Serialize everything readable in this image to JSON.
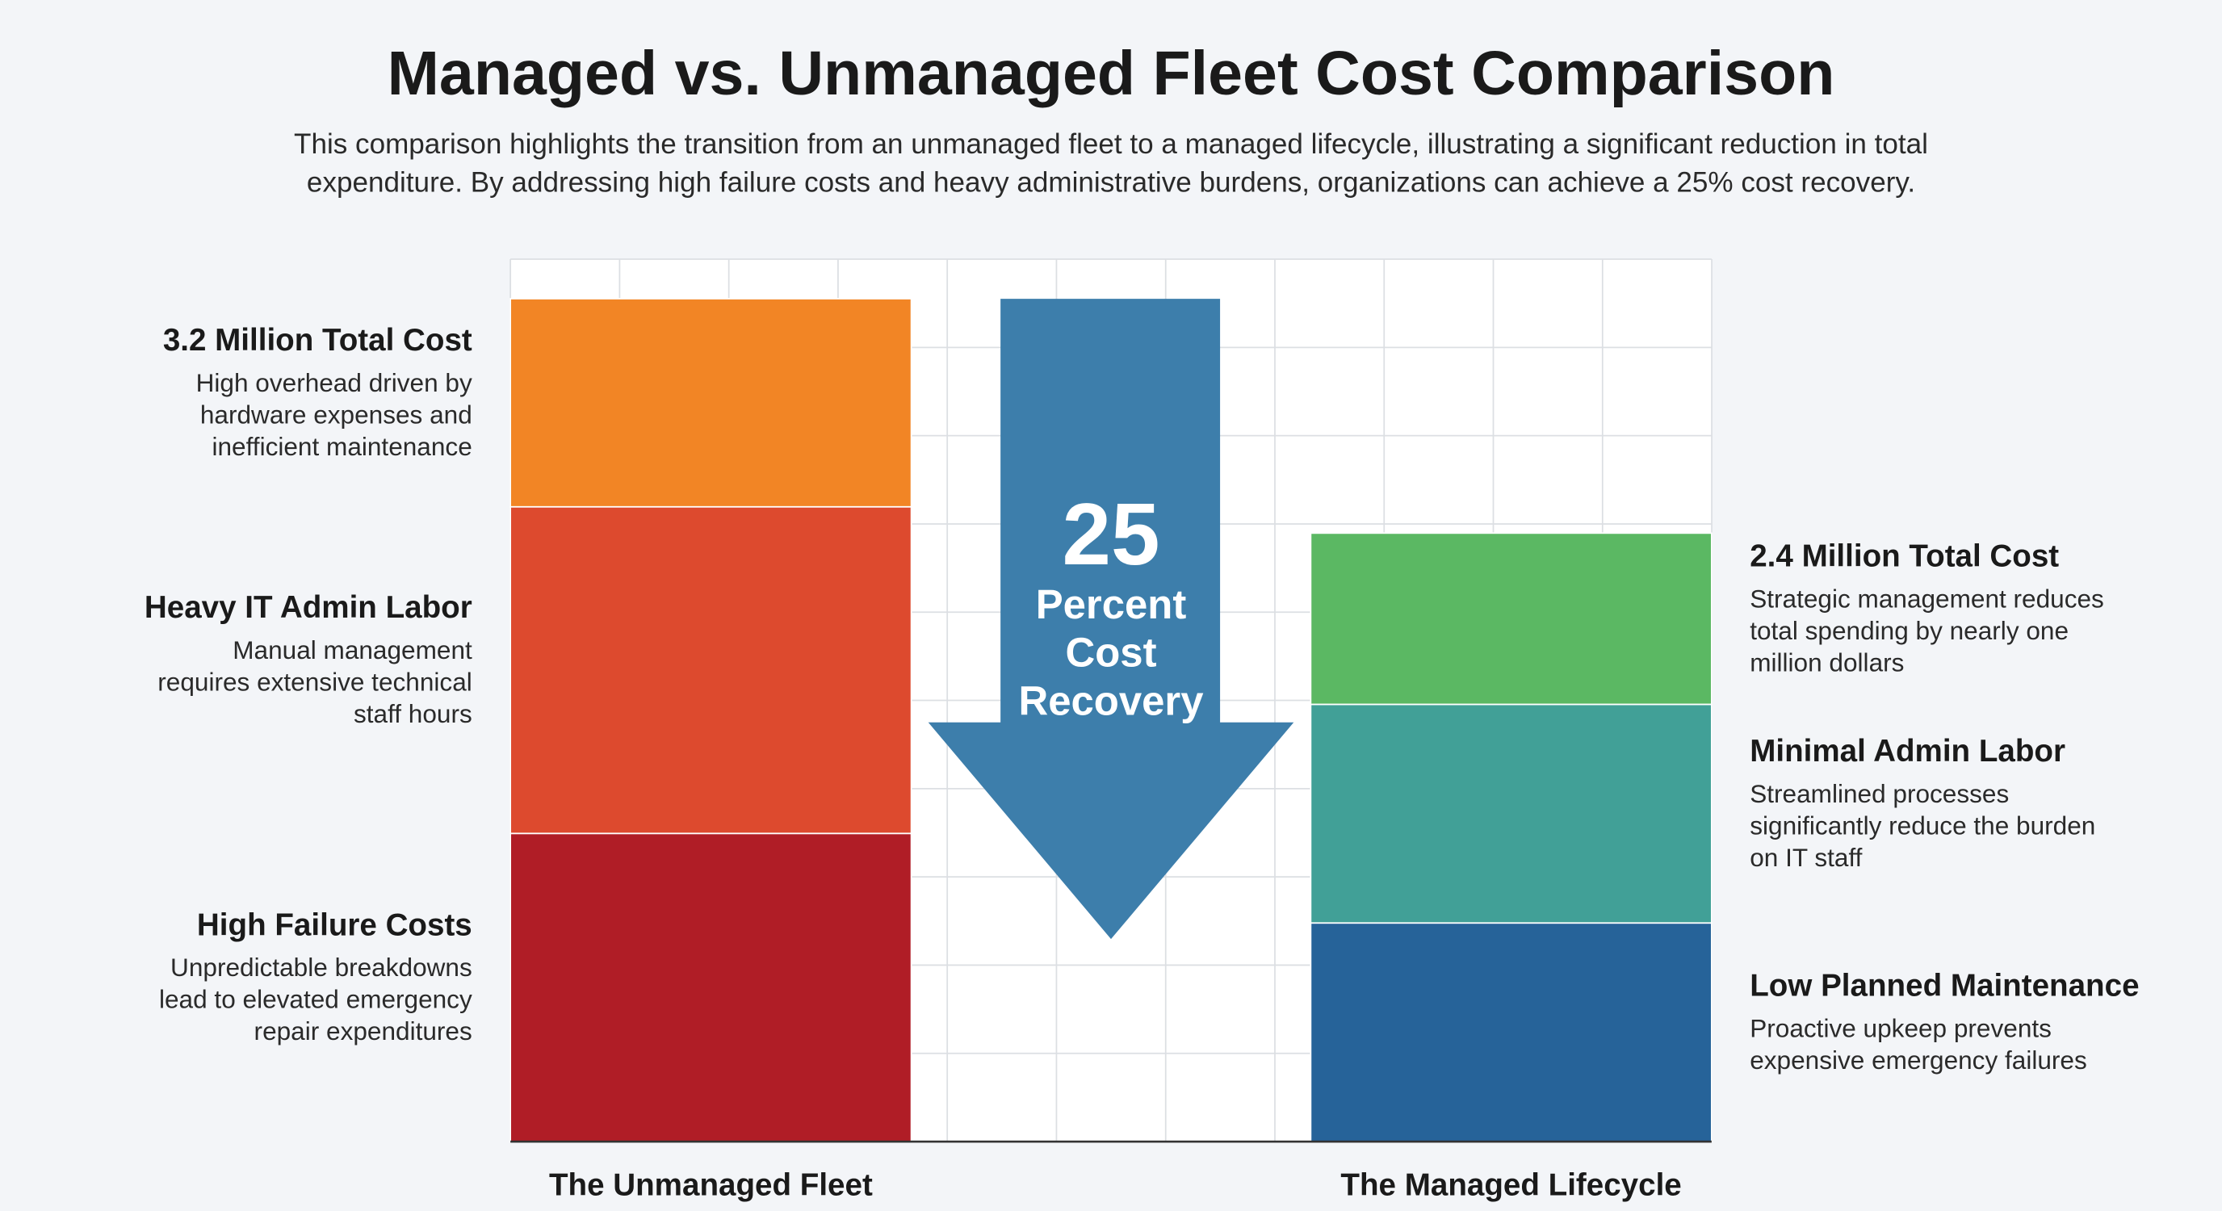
{
  "chart_data": {
    "type": "stacked-bar",
    "title": "Managed vs. Unmanaged Fleet Cost Comparison",
    "subtitle": [
      "This comparison highlights the transition from an unmanaged fleet to a managed lifecycle, illustrating a significant reduction in total",
      "expenditure. By addressing high failure costs and heavy administrative burdens, organizations can achieve a 25% cost recovery."
    ],
    "ylim": [
      0,
      3.35
    ],
    "grid": true,
    "bars": [
      {
        "label": "The Unmanaged Fleet",
        "label_side": "left",
        "segments": [
          {
            "name": "High Failure Costs",
            "description": [
              "Unpredictable breakdowns",
              "lead to elevated emergency",
              "repair expenditures"
            ],
            "value": 1.17,
            "color": "#b01d26"
          },
          {
            "name": "Heavy IT Admin Labor",
            "description": [
              "Manual management",
              "requires extensive technical",
              "staff hours"
            ],
            "value": 1.24,
            "color": "#dd4a2e"
          },
          {
            "name": "3.2 Million Total Cost",
            "description": [
              "High overhead driven by",
              "hardware expenses and",
              "inefficient maintenance"
            ],
            "value": 0.79,
            "color": "#f28525"
          }
        ]
      },
      {
        "label": "The Managed Lifecycle",
        "label_side": "right",
        "segments": [
          {
            "name": "Low Planned Maintenance",
            "description": [
              "Proactive upkeep prevents",
              "expensive emergency failures"
            ],
            "value": 0.83,
            "color": "#266399"
          },
          {
            "name": "Minimal Admin Labor",
            "description": [
              "Streamlined processes",
              "significantly reduce the burden",
              "on IT staff"
            ],
            "value": 0.83,
            "color": "#41a097"
          },
          {
            "name": "2.4 Million Total Cost",
            "description": [
              "Strategic management reduces",
              "total spending by nearly one",
              "million dollars"
            ],
            "value": 0.65,
            "color": "#5bb863"
          }
        ]
      }
    ],
    "annotation": {
      "big": "25",
      "lines": [
        "Percent",
        "Cost",
        "Recovery"
      ],
      "color": "#3d7eab"
    }
  }
}
